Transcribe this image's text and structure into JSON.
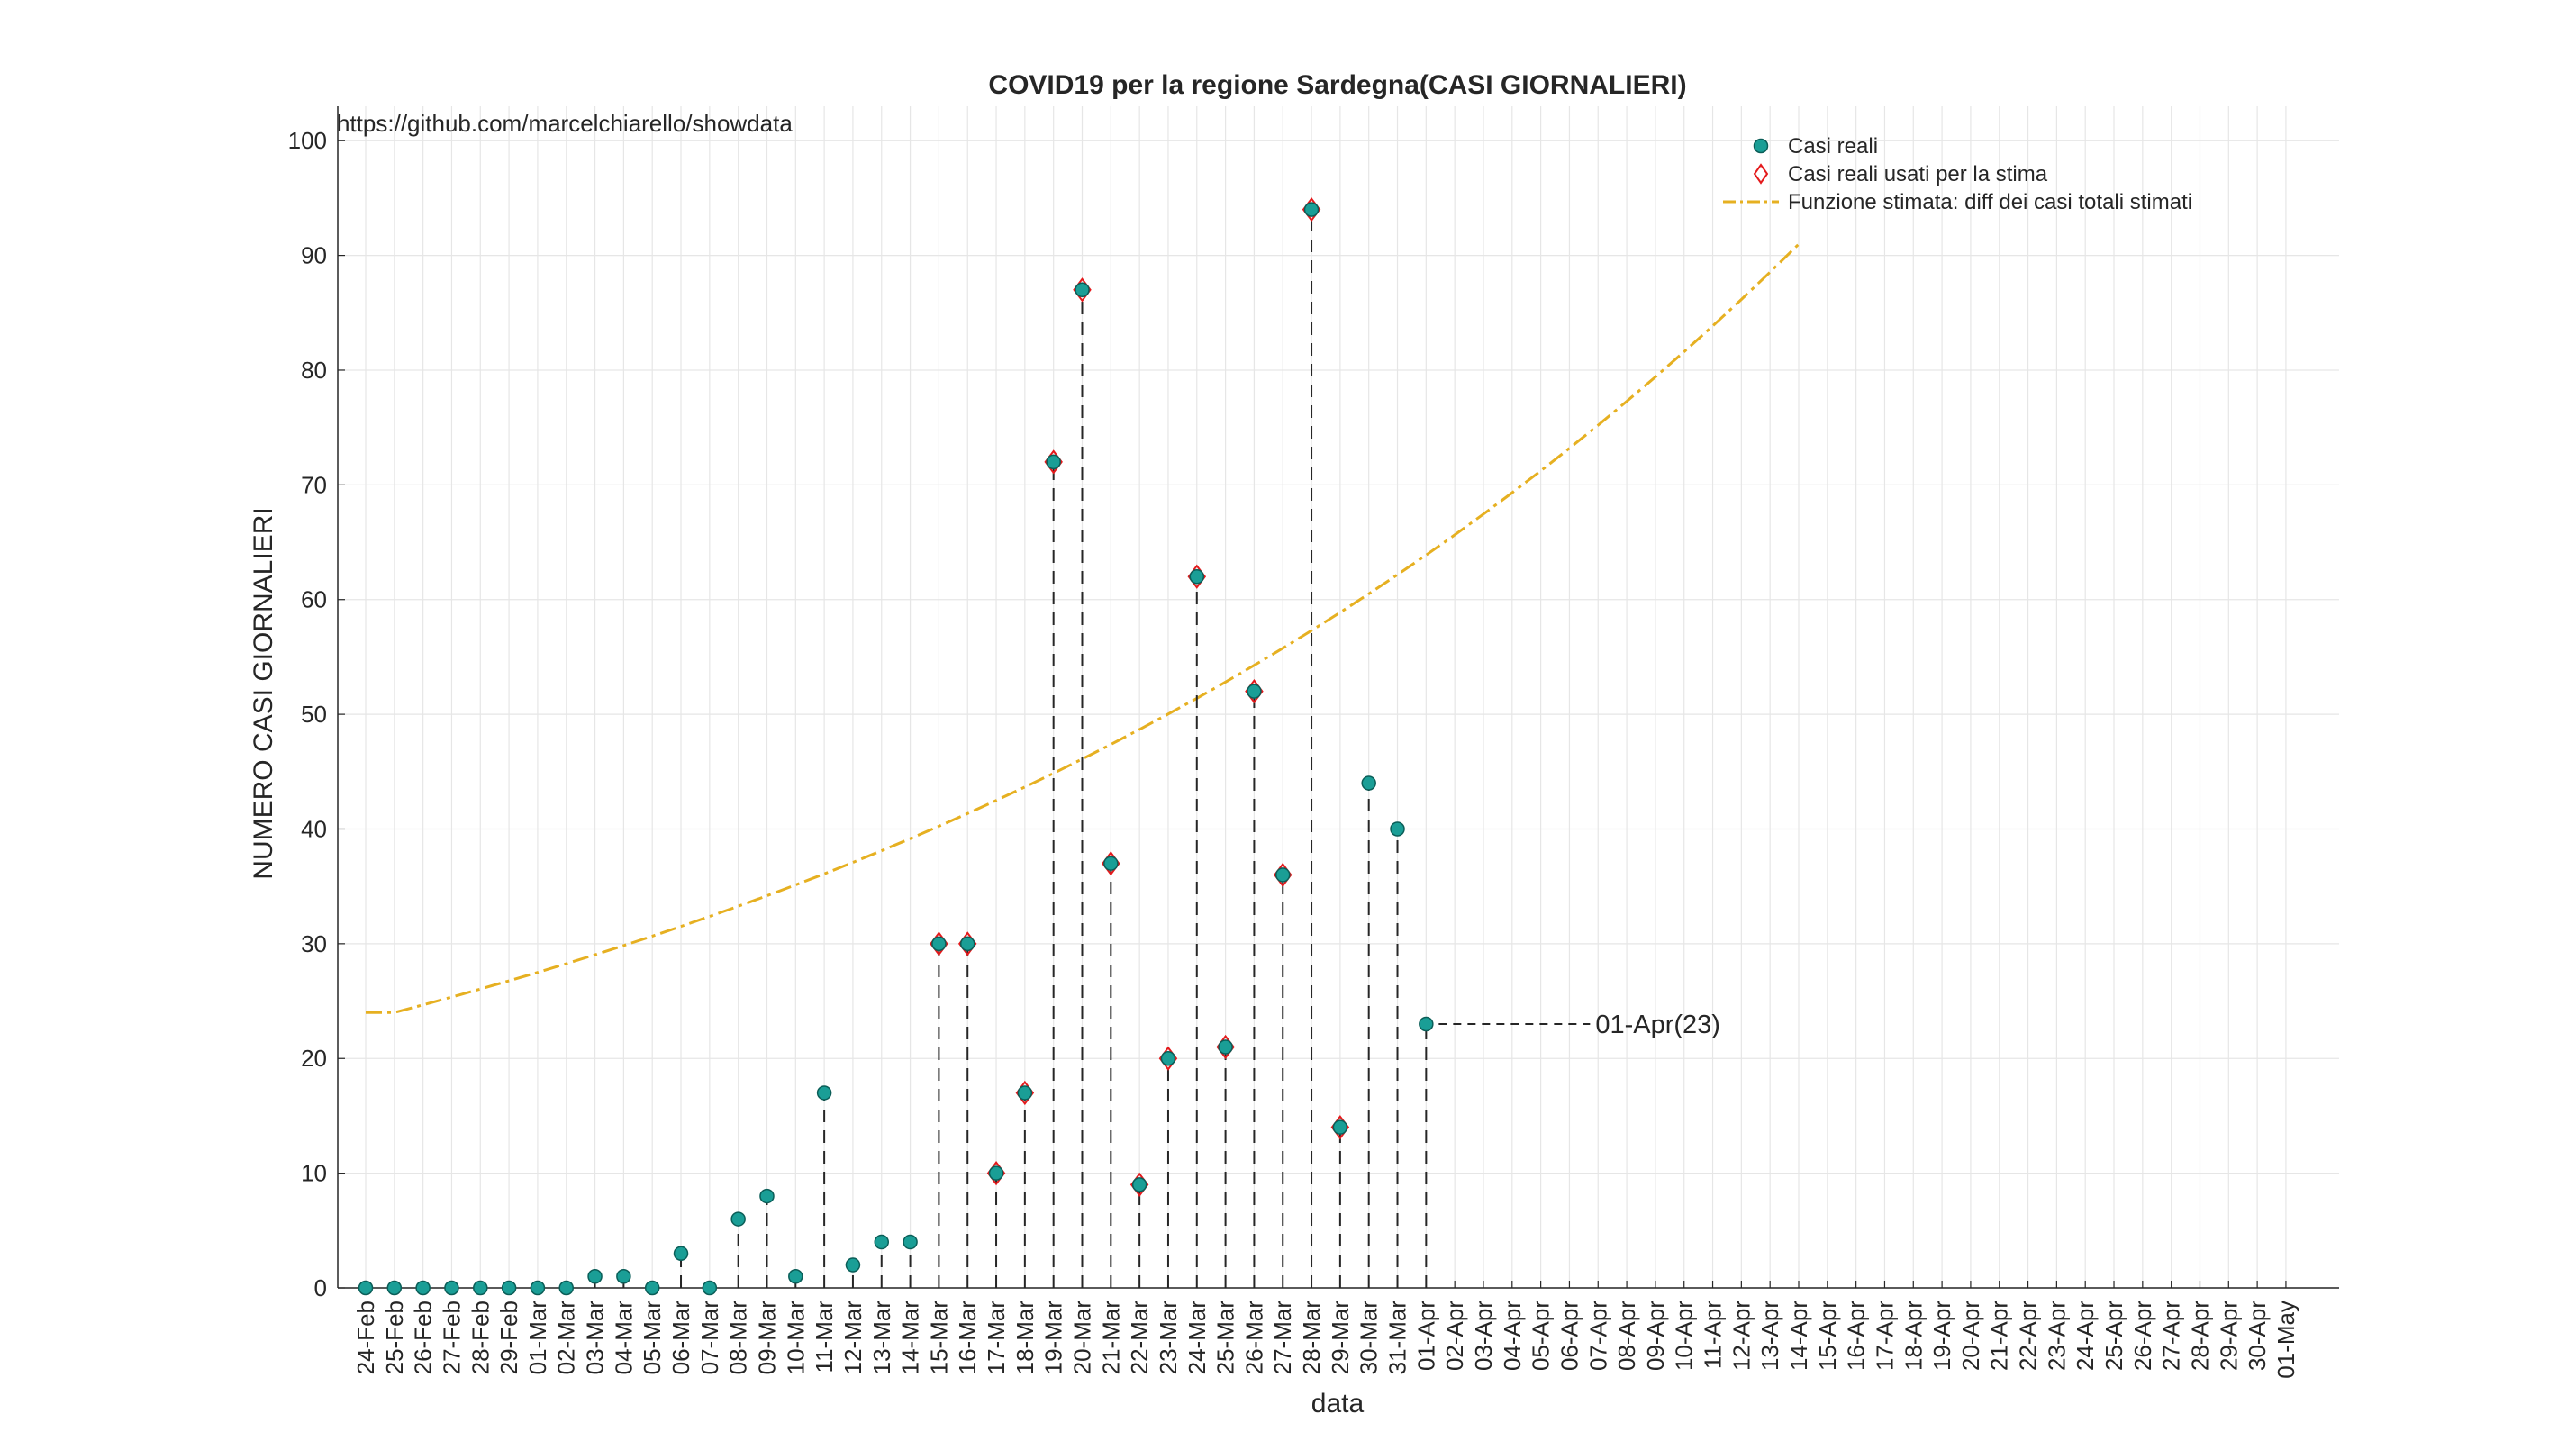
{
  "chart_data": {
    "type": "scatter",
    "title": "COVID19 per la regione Sardegna(CASI GIORNALIERI)",
    "source_note": "https://github.com/marcelchiarello/showdata",
    "xlabel": "data",
    "ylabel": "NUMERO CASI GIORNALIERI",
    "ylim": [
      0,
      103
    ],
    "yticks": [
      0,
      10,
      20,
      30,
      40,
      50,
      60,
      70,
      80,
      90,
      100
    ],
    "grid": true,
    "legend_position": "top-right",
    "x": [
      "24-Feb",
      "25-Feb",
      "26-Feb",
      "27-Feb",
      "28-Feb",
      "29-Feb",
      "01-Mar",
      "02-Mar",
      "03-Mar",
      "04-Mar",
      "05-Mar",
      "06-Mar",
      "07-Mar",
      "08-Mar",
      "09-Mar",
      "10-Mar",
      "11-Mar",
      "12-Mar",
      "13-Mar",
      "14-Mar",
      "15-Mar",
      "16-Mar",
      "17-Mar",
      "18-Mar",
      "19-Mar",
      "20-Mar",
      "21-Mar",
      "22-Mar",
      "23-Mar",
      "24-Mar",
      "25-Mar",
      "26-Mar",
      "27-Mar",
      "28-Mar",
      "29-Mar",
      "30-Mar",
      "31-Mar",
      "01-Apr",
      "02-Apr",
      "03-Apr",
      "04-Apr",
      "05-Apr",
      "06-Apr",
      "07-Apr",
      "08-Apr",
      "09-Apr",
      "10-Apr",
      "11-Apr",
      "12-Apr",
      "13-Apr",
      "14-Apr",
      "15-Apr",
      "16-Apr",
      "17-Apr",
      "18-Apr",
      "19-Apr",
      "20-Apr",
      "21-Apr",
      "22-Apr",
      "23-Apr",
      "24-Apr",
      "25-Apr",
      "26-Apr",
      "27-Apr",
      "28-Apr",
      "29-Apr",
      "30-Apr",
      "01-May"
    ],
    "series": [
      {
        "name": "Casi reali",
        "marker": "filled-circle",
        "color": "#1a9e96",
        "values": [
          0,
          0,
          0,
          0,
          0,
          0,
          0,
          0,
          1,
          1,
          0,
          3,
          0,
          6,
          8,
          1,
          17,
          2,
          4,
          4,
          30,
          30,
          10,
          17,
          72,
          87,
          37,
          9,
          20,
          62,
          21,
          52,
          36,
          94,
          14,
          44,
          40,
          23
        ]
      },
      {
        "name": "Casi reali usati per la stima",
        "marker": "open-diamond",
        "color": "#e41a1c",
        "points": [
          {
            "x": "15-Mar",
            "y": 30
          },
          {
            "x": "16-Mar",
            "y": 30
          },
          {
            "x": "17-Mar",
            "y": 10
          },
          {
            "x": "18-Mar",
            "y": 17
          },
          {
            "x": "19-Mar",
            "y": 72
          },
          {
            "x": "20-Mar",
            "y": 87
          },
          {
            "x": "21-Mar",
            "y": 37
          },
          {
            "x": "22-Mar",
            "y": 9
          },
          {
            "x": "23-Mar",
            "y": 20
          },
          {
            "x": "24-Mar",
            "y": 62
          },
          {
            "x": "25-Mar",
            "y": 21
          },
          {
            "x": "26-Mar",
            "y": 52
          },
          {
            "x": "27-Mar",
            "y": 36
          },
          {
            "x": "28-Mar",
            "y": 94
          },
          {
            "x": "29-Mar",
            "y": 14
          }
        ]
      },
      {
        "name": "Funzione stimata: diff dei casi totali stimati",
        "line_style": "dash-dot",
        "color": "#e6b021",
        "values": [
          24.0,
          24.0,
          24.67,
          25.35,
          26.05,
          26.77,
          27.5,
          28.26,
          29.04,
          29.84,
          30.66,
          31.51,
          32.38,
          33.27,
          34.18,
          35.13,
          36.09,
          37.09,
          38.11,
          39.16,
          40.24,
          41.35,
          42.49,
          43.66,
          44.86,
          46.1,
          47.37,
          48.68,
          50.02,
          51.39,
          52.81,
          54.27,
          55.76,
          57.3,
          58.88,
          60.5,
          62.17,
          63.88,
          65.64,
          67.45,
          69.31,
          71.22,
          73.19,
          75.2,
          77.28,
          79.41,
          81.6,
          83.85,
          86.16,
          88.54,
          90.98
        ]
      }
    ],
    "annotations": [
      {
        "x": "01-Apr",
        "y": 23,
        "text": "01-Apr(23)"
      }
    ]
  }
}
